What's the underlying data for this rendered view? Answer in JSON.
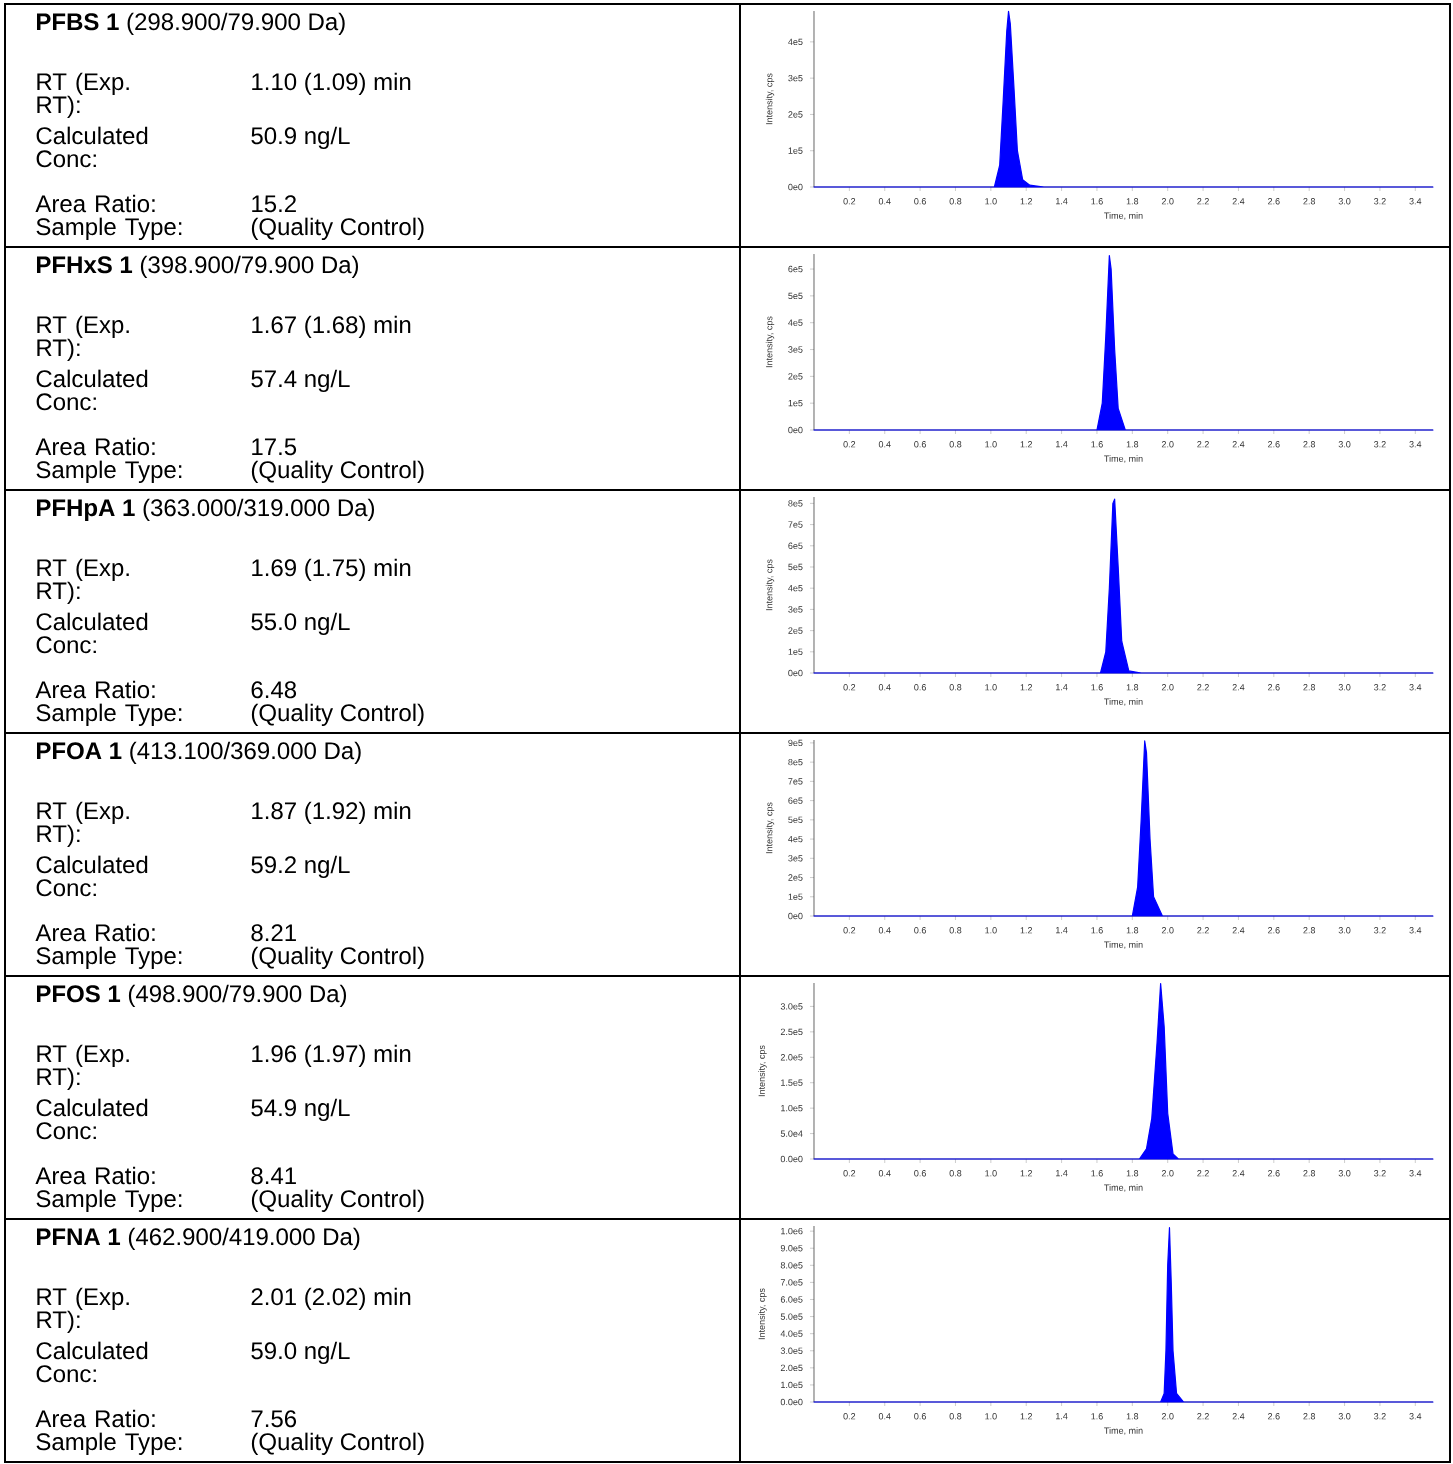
{
  "chart_data": [
    {
      "type": "other",
      "title": "**PFBS 1** (298.900/79.900 Da)",
      "annotations": [
        "RT (Exp. RT):",
        "1.10 (1.09) min",
        "Calculated Conc:",
        "50.9 ng/L",
        "Area Ratio:",
        "15.2",
        "Sample Type:",
        "(Quality Control)"
      ]
    },
    {
      "type": "area",
      "xlabel": "Time, min",
      "ylabel": "Intensity, cps",
      "xlim": [
        0,
        3.5
      ],
      "ylim": [
        0,
        485000
      ],
      "xticks": [
        {
          "value": 0.2,
          "label": "0.2"
        },
        {
          "value": 0.4,
          "label": "0.4"
        },
        {
          "value": 0.6,
          "label": "0.6"
        },
        {
          "value": 0.8,
          "label": "0.8"
        },
        {
          "value": 1.0,
          "label": "1.0"
        },
        {
          "value": 1.2,
          "label": "1.2"
        },
        {
          "value": 1.4,
          "label": "1.4"
        },
        {
          "value": 1.6,
          "label": "1.6"
        },
        {
          "value": 1.8,
          "label": "1.8"
        },
        {
          "value": 2.0,
          "label": "2.0"
        },
        {
          "value": 2.2,
          "label": "2.2"
        },
        {
          "value": 2.4,
          "label": "2.4"
        },
        {
          "value": 2.6,
          "label": "2.6"
        },
        {
          "value": 2.8,
          "label": "2.8"
        },
        {
          "value": 3.0,
          "label": "3.0"
        },
        {
          "value": 3.2,
          "label": "3.2"
        },
        {
          "value": 3.4,
          "label": "3.4"
        }
      ],
      "yticks": [
        {
          "value": 0,
          "label": "0e0"
        },
        {
          "value": 100000,
          "label": "1e5"
        },
        {
          "value": 200000,
          "label": "2e5"
        },
        {
          "value": 300000,
          "label": "3e5"
        },
        {
          "value": 400000,
          "label": "4e5"
        }
      ],
      "x": [
        0,
        1.02,
        1.05,
        1.07,
        1.09,
        1.1,
        1.11,
        1.13,
        1.15,
        1.18,
        1.22,
        1.3,
        3.5
      ],
      "series": [
        {
          "color": "#0000ff",
          "values": [
            0,
            0,
            60000,
            240000,
            430000,
            484000,
            450000,
            280000,
            100000,
            20000,
            5000,
            0,
            0
          ]
        }
      ]
    },
    {
      "type": "other",
      "title": "**PFHxS 1** (398.900/79.900 Da)",
      "annotations": [
        "RT (Exp. RT):",
        "1.67 (1.68) min",
        "Calculated Conc:",
        "57.4 ng/L",
        "Area Ratio:",
        "17.5",
        "Sample Type:",
        "(Quality Control)"
      ]
    },
    {
      "type": "area",
      "xlabel": "Time, min",
      "ylabel": "Intensity, cps",
      "xlim": [
        0,
        3.5
      ],
      "ylim": [
        0,
        656000
      ],
      "xticks": [
        {
          "value": 0.2,
          "label": "0.2"
        },
        {
          "value": 0.4,
          "label": "0.4"
        },
        {
          "value": 0.6,
          "label": "0.6"
        },
        {
          "value": 0.8,
          "label": "0.8"
        },
        {
          "value": 1.0,
          "label": "1.0"
        },
        {
          "value": 1.2,
          "label": "1.2"
        },
        {
          "value": 1.4,
          "label": "1.4"
        },
        {
          "value": 1.6,
          "label": "1.6"
        },
        {
          "value": 1.8,
          "label": "1.8"
        },
        {
          "value": 2.0,
          "label": "2.0"
        },
        {
          "value": 2.2,
          "label": "2.2"
        },
        {
          "value": 2.4,
          "label": "2.4"
        },
        {
          "value": 2.6,
          "label": "2.6"
        },
        {
          "value": 2.8,
          "label": "2.8"
        },
        {
          "value": 3.0,
          "label": "3.0"
        },
        {
          "value": 3.2,
          "label": "3.2"
        },
        {
          "value": 3.4,
          "label": "3.4"
        }
      ],
      "yticks": [
        {
          "value": 0,
          "label": "0e0"
        },
        {
          "value": 100000,
          "label": "1e5"
        },
        {
          "value": 200000,
          "label": "2e5"
        },
        {
          "value": 300000,
          "label": "3e5"
        },
        {
          "value": 400000,
          "label": "4e5"
        },
        {
          "value": 500000,
          "label": "5e5"
        },
        {
          "value": 600000,
          "label": "6e5"
        }
      ],
      "x": [
        0,
        1.6,
        1.63,
        1.65,
        1.67,
        1.68,
        1.7,
        1.72,
        1.76,
        3.5
      ],
      "series": [
        {
          "color": "#0000ff",
          "values": [
            0,
            0,
            100000,
            350000,
            650000,
            600000,
            300000,
            80000,
            0,
            0
          ]
        }
      ]
    },
    {
      "type": "other",
      "title": "**PFHpA 1** (363.000/319.000 Da)",
      "annotations": [
        "RT (Exp. RT):",
        "1.69 (1.75) min",
        "Calculated Conc:",
        "55.0 ng/L",
        "Area Ratio:",
        "6.48",
        "Sample Type:",
        "(Quality Control)"
      ]
    },
    {
      "type": "area",
      "xlabel": "Time, min",
      "ylabel": "Intensity, cps",
      "xlim": [
        0,
        3.5
      ],
      "ylim": [
        0,
        830000
      ],
      "xticks": [
        {
          "value": 0.2,
          "label": "0.2"
        },
        {
          "value": 0.4,
          "label": "0.4"
        },
        {
          "value": 0.6,
          "label": "0.6"
        },
        {
          "value": 0.8,
          "label": "0.8"
        },
        {
          "value": 1.0,
          "label": "1.0"
        },
        {
          "value": 1.2,
          "label": "1.2"
        },
        {
          "value": 1.4,
          "label": "1.4"
        },
        {
          "value": 1.6,
          "label": "1.6"
        },
        {
          "value": 1.8,
          "label": "1.8"
        },
        {
          "value": 2.0,
          "label": "2.0"
        },
        {
          "value": 2.2,
          "label": "2.2"
        },
        {
          "value": 2.4,
          "label": "2.4"
        },
        {
          "value": 2.6,
          "label": "2.6"
        },
        {
          "value": 2.8,
          "label": "2.8"
        },
        {
          "value": 3.0,
          "label": "3.0"
        },
        {
          "value": 3.2,
          "label": "3.2"
        },
        {
          "value": 3.4,
          "label": "3.4"
        }
      ],
      "yticks": [
        {
          "value": 0,
          "label": "0e0"
        },
        {
          "value": 100000,
          "label": "1e5"
        },
        {
          "value": 200000,
          "label": "2e5"
        },
        {
          "value": 300000,
          "label": "3e5"
        },
        {
          "value": 400000,
          "label": "4e5"
        },
        {
          "value": 500000,
          "label": "5e5"
        },
        {
          "value": 600000,
          "label": "6e5"
        },
        {
          "value": 700000,
          "label": "7e5"
        },
        {
          "value": 800000,
          "label": "8e5"
        }
      ],
      "x": [
        0,
        1.62,
        1.65,
        1.67,
        1.69,
        1.7,
        1.72,
        1.74,
        1.78,
        1.85,
        3.5
      ],
      "series": [
        {
          "color": "#0000ff",
          "values": [
            0,
            0,
            100000,
            400000,
            800000,
            820000,
            500000,
            150000,
            10000,
            0,
            0
          ]
        }
      ]
    },
    {
      "type": "other",
      "title": "**PFOA 1** (413.100/369.000 Da)",
      "annotations": [
        "RT (Exp. RT):",
        "1.87 (1.92) min",
        "Calculated Conc:",
        "59.2 ng/L",
        "Area Ratio:",
        "8.21",
        "Sample Type:",
        "(Quality Control)"
      ]
    },
    {
      "type": "area",
      "xlabel": "Time, min",
      "ylabel": "Intensity, cps",
      "xlim": [
        0,
        3.5
      ],
      "ylim": [
        0,
        915000
      ],
      "xticks": [
        {
          "value": 0.2,
          "label": "0.2"
        },
        {
          "value": 0.4,
          "label": "0.4"
        },
        {
          "value": 0.6,
          "label": "0.6"
        },
        {
          "value": 0.8,
          "label": "0.8"
        },
        {
          "value": 1.0,
          "label": "1.0"
        },
        {
          "value": 1.2,
          "label": "1.2"
        },
        {
          "value": 1.4,
          "label": "1.4"
        },
        {
          "value": 1.6,
          "label": "1.6"
        },
        {
          "value": 1.8,
          "label": "1.8"
        },
        {
          "value": 2.0,
          "label": "2.0"
        },
        {
          "value": 2.2,
          "label": "2.2"
        },
        {
          "value": 2.4,
          "label": "2.4"
        },
        {
          "value": 2.6,
          "label": "2.6"
        },
        {
          "value": 2.8,
          "label": "2.8"
        },
        {
          "value": 3.0,
          "label": "3.0"
        },
        {
          "value": 3.2,
          "label": "3.2"
        },
        {
          "value": 3.4,
          "label": "3.4"
        }
      ],
      "yticks": [
        {
          "value": 0,
          "label": "0e0"
        },
        {
          "value": 100000,
          "label": "1e5"
        },
        {
          "value": 200000,
          "label": "2e5"
        },
        {
          "value": 300000,
          "label": "3e5"
        },
        {
          "value": 400000,
          "label": "4e5"
        },
        {
          "value": 500000,
          "label": "5e5"
        },
        {
          "value": 600000,
          "label": "6e5"
        },
        {
          "value": 700000,
          "label": "7e5"
        },
        {
          "value": 800000,
          "label": "8e5"
        },
        {
          "value": 900000,
          "label": "9e5"
        }
      ],
      "x": [
        0,
        1.8,
        1.83,
        1.85,
        1.87,
        1.88,
        1.9,
        1.92,
        1.97,
        3.5
      ],
      "series": [
        {
          "color": "#0000ff",
          "values": [
            0,
            0,
            150000,
            500000,
            910000,
            850000,
            400000,
            100000,
            0,
            0
          ]
        }
      ]
    },
    {
      "type": "other",
      "title": "**PFOS 1** (498.900/79.900 Da)",
      "annotations": [
        "RT (Exp. RT):",
        "1.96 (1.97) min",
        "Calculated Conc:",
        "54.9 ng/L",
        "Area Ratio:",
        "8.41",
        "Sample Type:",
        "(Quality Control)"
      ]
    },
    {
      "type": "area",
      "xlabel": "Time, min",
      "ylabel": "Intensity, cps",
      "xlim": [
        0,
        3.5
      ],
      "ylim": [
        0,
        346000
      ],
      "xticks": [
        {
          "value": 0.2,
          "label": "0.2"
        },
        {
          "value": 0.4,
          "label": "0.4"
        },
        {
          "value": 0.6,
          "label": "0.6"
        },
        {
          "value": 0.8,
          "label": "0.8"
        },
        {
          "value": 1.0,
          "label": "1.0"
        },
        {
          "value": 1.2,
          "label": "1.2"
        },
        {
          "value": 1.4,
          "label": "1.4"
        },
        {
          "value": 1.6,
          "label": "1.6"
        },
        {
          "value": 1.8,
          "label": "1.8"
        },
        {
          "value": 2.0,
          "label": "2.0"
        },
        {
          "value": 2.2,
          "label": "2.2"
        },
        {
          "value": 2.4,
          "label": "2.4"
        },
        {
          "value": 2.6,
          "label": "2.6"
        },
        {
          "value": 2.8,
          "label": "2.8"
        },
        {
          "value": 3.0,
          "label": "3.0"
        },
        {
          "value": 3.2,
          "label": "3.2"
        },
        {
          "value": 3.4,
          "label": "3.4"
        }
      ],
      "yticks": [
        {
          "value": 0,
          "label": "0.0e0"
        },
        {
          "value": 50000,
          "label": "5.0e4"
        },
        {
          "value": 100000,
          "label": "1.0e5"
        },
        {
          "value": 150000,
          "label": "1.5e5"
        },
        {
          "value": 200000,
          "label": "2.0e5"
        },
        {
          "value": 250000,
          "label": "2.5e5"
        },
        {
          "value": 300000,
          "label": "3.0e5"
        }
      ],
      "x": [
        0,
        1.84,
        1.88,
        1.91,
        1.94,
        1.96,
        1.98,
        2.0,
        2.03,
        2.06,
        3.5
      ],
      "series": [
        {
          "color": "#0000ff",
          "values": [
            0,
            0,
            20000,
            80000,
            230000,
            345000,
            260000,
            90000,
            10000,
            0,
            0
          ]
        }
      ]
    },
    {
      "type": "other",
      "title": "**PFNA 1** (462.900/419.000 Da)",
      "annotations": [
        "RT (Exp. RT):",
        "2.01 (2.02) min",
        "Calculated Conc:",
        "59.0 ng/L",
        "Area Ratio:",
        "7.56",
        "Sample Type:",
        "(Quality Control)"
      ]
    },
    {
      "type": "area",
      "xlabel": "Time, min",
      "ylabel": "Intensity, cps",
      "xlim": [
        0,
        3.5
      ],
      "ylim": [
        0,
        1030000
      ],
      "xticks": [
        {
          "value": 0.2,
          "label": "0.2"
        },
        {
          "value": 0.4,
          "label": "0.4"
        },
        {
          "value": 0.6,
          "label": "0.6"
        },
        {
          "value": 0.8,
          "label": "0.8"
        },
        {
          "value": 1.0,
          "label": "1.0"
        },
        {
          "value": 1.2,
          "label": "1.2"
        },
        {
          "value": 1.4,
          "label": "1.4"
        },
        {
          "value": 1.6,
          "label": "1.6"
        },
        {
          "value": 1.8,
          "label": "1.8"
        },
        {
          "value": 2.0,
          "label": "2.0"
        },
        {
          "value": 2.2,
          "label": "2.2"
        },
        {
          "value": 2.4,
          "label": "2.4"
        },
        {
          "value": 2.6,
          "label": "2.6"
        },
        {
          "value": 2.8,
          "label": "2.8"
        },
        {
          "value": 3.0,
          "label": "3.0"
        },
        {
          "value": 3.2,
          "label": "3.2"
        },
        {
          "value": 3.4,
          "label": "3.4"
        }
      ],
      "yticks": [
        {
          "value": 0,
          "label": "0.0e0"
        },
        {
          "value": 100000,
          "label": "1.0e5"
        },
        {
          "value": 200000,
          "label": "2.0e5"
        },
        {
          "value": 300000,
          "label": "3.0e5"
        },
        {
          "value": 400000,
          "label": "4.0e5"
        },
        {
          "value": 500000,
          "label": "5.0e5"
        },
        {
          "value": 600000,
          "label": "6.0e5"
        },
        {
          "value": 700000,
          "label": "7.0e5"
        },
        {
          "value": 800000,
          "label": "8.0e5"
        },
        {
          "value": 900000,
          "label": "9.0e5"
        },
        {
          "value": 1000000,
          "label": "1.0e6"
        }
      ],
      "x": [
        0,
        1.96,
        1.98,
        1.99,
        2.0,
        2.01,
        2.02,
        2.03,
        2.05,
        2.09,
        3.5
      ],
      "series": [
        {
          "color": "#0000ff",
          "values": [
            0,
            0,
            50000,
            300000,
            800000,
            1020000,
            700000,
            300000,
            50000,
            0,
            0
          ]
        }
      ]
    }
  ]
}
